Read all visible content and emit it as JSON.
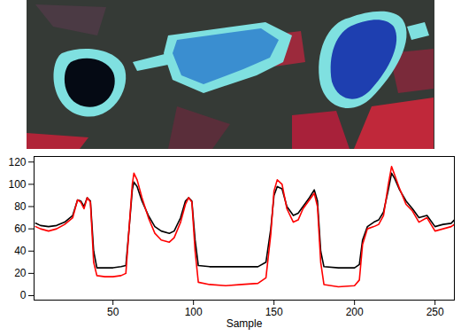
{
  "chart_data": {
    "type": "line",
    "x_label": "Sample",
    "xlim": [
      1,
      262
    ],
    "xticks": [
      50,
      100,
      150,
      200,
      250
    ],
    "ylim": [
      -4,
      125
    ],
    "yticks": [
      0,
      20,
      40,
      60,
      80,
      100,
      120
    ],
    "x": [
      2,
      5,
      10,
      15,
      20,
      25,
      28,
      30,
      32,
      34,
      36,
      38,
      40,
      45,
      50,
      55,
      58,
      60,
      62,
      63,
      65,
      68,
      72,
      76,
      80,
      85,
      88,
      92,
      95,
      97,
      99,
      101,
      103,
      110,
      120,
      130,
      140,
      145,
      148,
      150,
      152,
      155,
      158,
      162,
      165,
      168,
      172,
      175,
      177,
      179,
      181,
      190,
      200,
      203,
      205,
      208,
      212,
      215,
      218,
      221,
      223,
      225,
      228,
      232,
      236,
      240,
      245,
      250,
      255,
      260,
      262
    ],
    "series": [
      {
        "color": "#000000",
        "values": [
          65,
          63,
          62,
          63,
          66,
          72,
          86,
          85,
          80,
          88,
          85,
          40,
          25,
          25,
          25,
          26,
          27,
          60,
          95,
          102,
          98,
          85,
          72,
          62,
          58,
          56,
          58,
          70,
          85,
          88,
          85,
          50,
          27,
          26,
          26,
          26,
          26,
          30,
          60,
          90,
          98,
          96,
          80,
          72,
          74,
          80,
          88,
          95,
          85,
          40,
          26,
          25,
          25,
          28,
          50,
          62,
          66,
          68,
          75,
          95,
          110,
          105,
          95,
          85,
          78,
          70,
          72,
          62,
          64,
          65,
          68
        ]
      },
      {
        "color": "#ff0000",
        "values": [
          62,
          60,
          58,
          60,
          64,
          70,
          86,
          84,
          78,
          88,
          84,
          30,
          18,
          17,
          17,
          18,
          20,
          60,
          100,
          110,
          104,
          88,
          70,
          56,
          50,
          48,
          52,
          66,
          82,
          88,
          84,
          40,
          12,
          10,
          9,
          10,
          11,
          16,
          55,
          94,
          104,
          100,
          78,
          66,
          68,
          78,
          86,
          92,
          80,
          30,
          10,
          8,
          9,
          14,
          46,
          60,
          62,
          64,
          72,
          100,
          116,
          108,
          96,
          82,
          76,
          66,
          70,
          58,
          60,
          62,
          64
        ]
      }
    ]
  }
}
